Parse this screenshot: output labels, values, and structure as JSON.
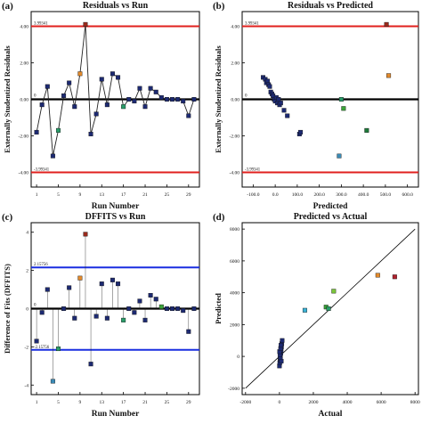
{
  "colors": {
    "red_limit": "#e0201e",
    "blue_limit": "#1a2fe0",
    "zero_line": "#000000",
    "marker_default": "#1d2a72"
  },
  "chart_data": [
    {
      "panel_label": "(a)",
      "type": "line",
      "title": "Residuals vs Run",
      "xlabel": "Run Number",
      "ylabel": "Externally Studentized Residuals",
      "xlim": [
        0,
        31
      ],
      "ylim": [
        -4.8,
        4.8
      ],
      "yticks": [
        4.0,
        2.0,
        0,
        -2.0,
        -4.0
      ],
      "ytick_labels": [
        "4.00",
        "2.00",
        "0.00",
        "-2.00",
        "-4.00"
      ],
      "xticks": [
        1,
        5,
        9,
        13,
        17,
        21,
        25,
        29
      ],
      "limit_lines": [
        {
          "value": 3.99341,
          "label": "3.99341",
          "color": "red"
        },
        {
          "value": -3.99341,
          "label": "-3.99341",
          "color": "red"
        }
      ],
      "zero_label": "0",
      "series": [
        {
          "x": [
            1,
            2,
            3,
            4,
            5,
            6,
            7,
            8,
            9,
            10,
            11,
            12,
            13,
            14,
            15,
            16,
            17,
            18,
            19,
            20,
            21,
            22,
            23,
            24,
            25,
            26,
            27,
            28,
            29,
            30
          ],
          "y": [
            -1.8,
            -0.3,
            0.7,
            -3.1,
            -1.7,
            0.2,
            0.9,
            -0.4,
            1.4,
            4.1,
            -1.9,
            -0.8,
            1.1,
            -0.3,
            1.4,
            1.2,
            -0.4,
            0.0,
            -0.1,
            0.6,
            -0.4,
            0.6,
            0.4,
            0.1,
            0.0,
            0.0,
            0.0,
            -0.1,
            -0.9,
            0.0
          ],
          "colors": [
            "#1d2a72",
            "#1d2a72",
            "#1d2a72",
            "#1d2a72",
            "#2a9d6a",
            "#1d2a72",
            "#1d2a72",
            "#1d2a72",
            "#e28a2c",
            "#9a2a1c",
            "#1d2a72",
            "#1d2a72",
            "#1d2a72",
            "#1d2a72",
            "#1d2a72",
            "#1d2a72",
            "#2a9d6a",
            "#1d2a72",
            "#1d2a72",
            "#1d2a72",
            "#1d2a72",
            "#1d2a72",
            "#1d2a72",
            "#1d2a72",
            "#1d2a72",
            "#1d2a72",
            "#1d2a72",
            "#1d2a72",
            "#1d2a72",
            "#1d2a72"
          ]
        }
      ]
    },
    {
      "panel_label": "(b)",
      "type": "scatter",
      "title": "Residuals vs Predicted",
      "xlabel": "Predicted",
      "ylabel": "Externally Studentized Residuals",
      "xlim": [
        -150,
        650
      ],
      "ylim": [
        -4.8,
        4.8
      ],
      "yticks": [
        4.0,
        2.0,
        0,
        -2.0,
        -4.0
      ],
      "ytick_labels": [
        "4.00",
        "2.00",
        "0.00",
        "-2.00",
        "-4.00"
      ],
      "xticks": [
        -100,
        0,
        100,
        200,
        300,
        400,
        500,
        600
      ],
      "xtick_labels": [
        "-100.0",
        "0.0",
        "100.0",
        "200.0",
        "300.0",
        "400.0",
        "500.0",
        "600.0"
      ],
      "limit_lines": [
        {
          "value": 3.99341,
          "label": "3.99341",
          "color": "red"
        },
        {
          "value": -3.99341,
          "label": "-3.99341",
          "color": "red"
        }
      ],
      "zero_label": "0",
      "series": [
        {
          "x": [
            -55,
            -45,
            -40,
            -35,
            -30,
            -25,
            -20,
            -15,
            -10,
            -5,
            0,
            5,
            10,
            15,
            20,
            25,
            40,
            55,
            110,
            115,
            290,
            300,
            310,
            415,
            505,
            515
          ],
          "y": [
            1.2,
            1.1,
            0.9,
            1.0,
            0.8,
            0.7,
            0.4,
            0.3,
            0.2,
            0.0,
            -0.1,
            0.1,
            -0.2,
            0.0,
            -0.3,
            -0.2,
            -0.6,
            -0.9,
            -1.9,
            -1.8,
            -3.1,
            0.0,
            -0.5,
            -1.7,
            4.1,
            1.3
          ],
          "colors": [
            "#1d2a72",
            "#1d2a72",
            "#1d2a72",
            "#1d2a72",
            "#1d2a72",
            "#1d2a72",
            "#1d2a72",
            "#1d2a72",
            "#1d2a72",
            "#1d2a72",
            "#1d2a72",
            "#1d2a72",
            "#1d2a72",
            "#1d2a72",
            "#1d2a72",
            "#1d2a72",
            "#1d2a72",
            "#1d2a72",
            "#1d2a72",
            "#1d2a72",
            "#3b8ab5",
            "#2a9d6a",
            "#3ca43a",
            "#1e7a3a",
            "#9a2a1c",
            "#e28a2c"
          ]
        }
      ]
    },
    {
      "panel_label": "(c)",
      "type": "scatter",
      "title": "DFFITS vs Run",
      "xlabel": "Run Number",
      "ylabel": "Difference of Fits (DFFITS)",
      "xlim": [
        0,
        31
      ],
      "ylim": [
        -4.5,
        4.5
      ],
      "yticks": [
        4,
        2,
        0,
        -2,
        -4
      ],
      "ytick_labels": [
        "4",
        "2",
        "0",
        "-2",
        "-4"
      ],
      "xticks": [
        1,
        5,
        9,
        13,
        17,
        21,
        25,
        29
      ],
      "limit_lines": [
        {
          "value": 2.15756,
          "label": "2.15756",
          "color": "blue"
        },
        {
          "value": -2.15756,
          "label": "-2.15756",
          "color": "blue"
        }
      ],
      "zero_label": "0",
      "series": [
        {
          "x": [
            1,
            2,
            3,
            4,
            5,
            6,
            7,
            8,
            9,
            10,
            11,
            12,
            13,
            14,
            15,
            16,
            17,
            18,
            19,
            20,
            21,
            22,
            23,
            24,
            25,
            26,
            27,
            28,
            29,
            30
          ],
          "y": [
            -1.7,
            -0.2,
            1.0,
            -3.8,
            -2.1,
            0.0,
            1.1,
            -0.5,
            1.6,
            3.9,
            -2.9,
            -0.4,
            1.3,
            -0.5,
            1.5,
            1.3,
            -0.6,
            0.0,
            -0.2,
            0.4,
            -0.6,
            0.7,
            0.5,
            0.1,
            0.0,
            0.0,
            0.0,
            -0.1,
            -1.2,
            0.0
          ],
          "colors": [
            "#1d2a72",
            "#1d2a72",
            "#1d2a72",
            "#3b8ab5",
            "#2a9d6a",
            "#1d2a72",
            "#1d2a72",
            "#1d2a72",
            "#e28a2c",
            "#9a2a1c",
            "#1d2a72",
            "#1d2a72",
            "#1d2a72",
            "#1d2a72",
            "#1d2a72",
            "#1d2a72",
            "#2a9d6a",
            "#1d2a72",
            "#1d2a72",
            "#1d2a72",
            "#1d2a72",
            "#1d2a72",
            "#1d2a72",
            "#3ca43a",
            "#1d2a72",
            "#1d2a72",
            "#1d2a72",
            "#1d2a72",
            "#1d2a72",
            "#1d2a72"
          ]
        }
      ]
    },
    {
      "panel_label": "(d)",
      "type": "scatter",
      "title": "Predicted vs Actual",
      "xlabel": "Actual",
      "ylabel": "Predicted",
      "xlim": [
        -2200,
        8200
      ],
      "ylim": [
        -2400,
        8400
      ],
      "yticks": [
        8000,
        6000,
        4000,
        2000,
        0,
        -2000
      ],
      "xticks": [
        -2000,
        0,
        2000,
        4000,
        6000,
        8000
      ],
      "diagonal": [
        -2000,
        8000
      ],
      "series": [
        {
          "x": [
            0,
            20,
            40,
            60,
            80,
            100,
            120,
            140,
            160,
            50,
            30,
            10,
            70,
            90,
            110,
            1500,
            2750,
            2900,
            3200,
            5800,
            6800
          ],
          "y": [
            -600,
            -400,
            -200,
            0,
            200,
            400,
            600,
            800,
            1000,
            -100,
            100,
            300,
            500,
            700,
            -300,
            2900,
            3100,
            3000,
            4100,
            5100,
            5000
          ],
          "colors": [
            "#1d2a72",
            "#1d2a72",
            "#1d2a72",
            "#1d2a72",
            "#1d2a72",
            "#1d2a72",
            "#1d2a72",
            "#1d2a72",
            "#1d2a72",
            "#1d2a72",
            "#1d2a72",
            "#1d2a72",
            "#1d2a72",
            "#1d2a72",
            "#1d2a72",
            "#3bb3d6",
            "#3ca43a",
            "#2a9d6a",
            "#7bc63a",
            "#e28a2c",
            "#b0222e"
          ]
        }
      ]
    }
  ]
}
